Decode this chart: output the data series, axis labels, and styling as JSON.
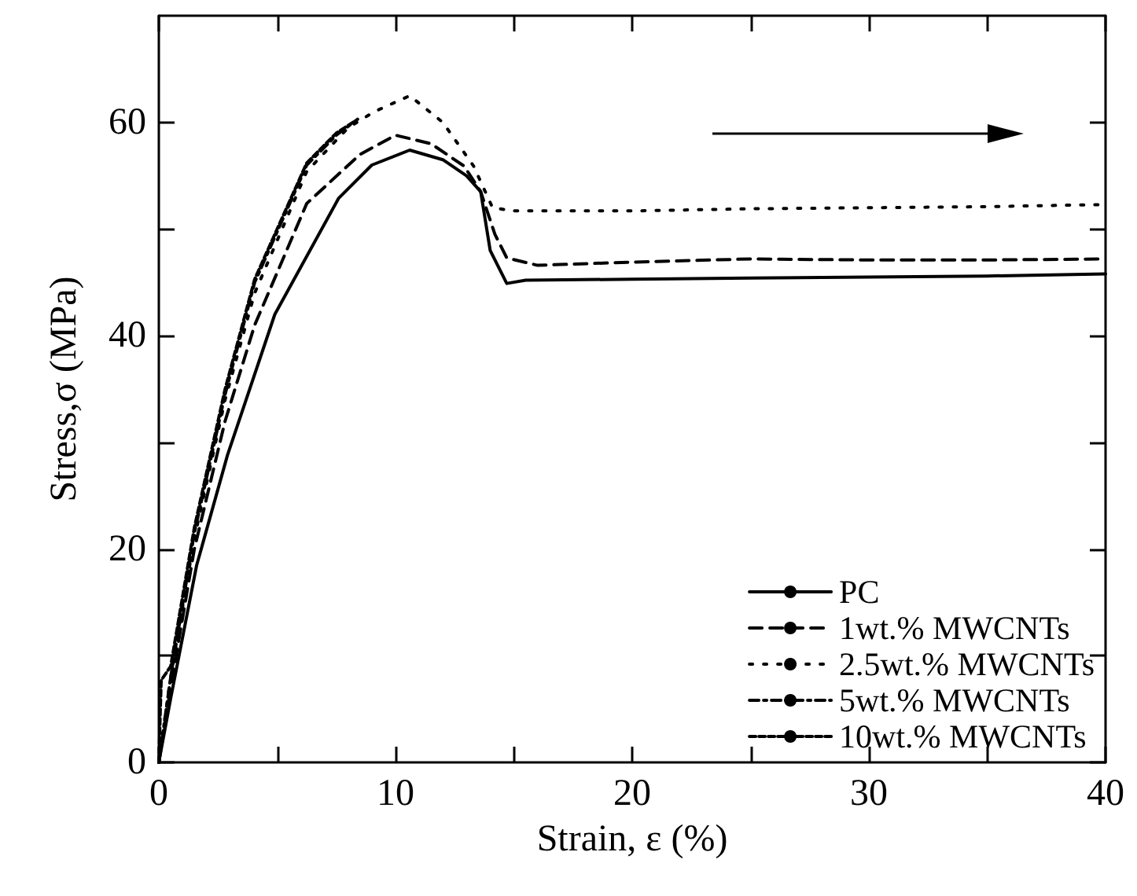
{
  "chart_data": {
    "type": "line",
    "xlabel": "Strain, ε (%)",
    "ylabel": "Stress,σ (MPa)",
    "xlim": [
      0,
      40
    ],
    "xticks": [
      0,
      {
        "value": 5,
        "label": null
      },
      10,
      {
        "value": 15,
        "label": null
      },
      20,
      {
        "value": 25,
        "label": null
      },
      30,
      {
        "value": 35,
        "label": null
      },
      40
    ],
    "ylim": [
      0,
      70
    ],
    "yticks": [
      0,
      {
        "value": 10,
        "label": null
      },
      20,
      {
        "value": 30,
        "label": null
      },
      40,
      {
        "value": 50,
        "label": null
      },
      60
    ],
    "grid": false,
    "legend": "bottom right",
    "marker": "none",
    "series": [
      {
        "name": "PC",
        "color": "#000000",
        "line_style": "solid",
        "x": [
          0,
          0.5,
          1.6,
          2.9,
          4.9,
          7.6,
          9.0,
          10.6,
          12.0,
          13.0,
          13.6,
          14.0,
          14.7,
          15.5,
          20,
          25,
          30,
          35,
          40
        ],
        "values": [
          0,
          6,
          18.5,
          28.8,
          42,
          52.9,
          56.0,
          57.4,
          56.5,
          55.0,
          53.5,
          48,
          44.9,
          45.2,
          45.3,
          45.4,
          45.5,
          45.6,
          45.8
        ]
      },
      {
        "name": "1wt.% MWCNTs",
        "color": "#000000",
        "line_style": "dashed",
        "x": [
          0,
          0.5,
          1.5,
          2.8,
          4.05,
          6.25,
          8.5,
          10.0,
          11.5,
          12.9,
          13.6,
          14.2,
          14.7,
          16,
          20,
          25,
          30,
          35,
          40
        ],
        "values": [
          0,
          7,
          20,
          32,
          41,
          52.4,
          57.0,
          58.8,
          58.0,
          55.9,
          53.5,
          49.5,
          47.3,
          46.6,
          46.9,
          47.2,
          47.1,
          47.1,
          47.2
        ]
      },
      {
        "name": "2.5wt.% MWCNTs",
        "color": "#000000",
        "line_style": "dotted",
        "x": [
          0,
          0.5,
          1.5,
          2.8,
          4.05,
          6.25,
          8.0,
          9.1,
          10.6,
          12.0,
          13.3,
          14.1,
          15,
          20,
          25,
          30,
          35,
          40
        ],
        "values": [
          0,
          8,
          21,
          34,
          44,
          55.4,
          59.5,
          61,
          62.5,
          60.0,
          55.9,
          52,
          51.7,
          51.7,
          51.9,
          52.0,
          52.1,
          52.3
        ]
      },
      {
        "name": "5wt.% MWCNTs",
        "color": "#000000",
        "line_style": "dashdot",
        "x": [
          0,
          0.5,
          1.5,
          2.8,
          4.05,
          6.25,
          7.5,
          8.4
        ],
        "values": [
          0,
          8,
          21.5,
          34.5,
          45,
          56,
          58.8,
          60.3
        ]
      },
      {
        "name": "10wt.% MWCNTs",
        "color": "#000000",
        "line_style": "densedash",
        "x": [
          0,
          0.1,
          0.5,
          1.5,
          2.8,
          4.05,
          6.25,
          7.5,
          8.2
        ],
        "values": [
          0,
          7.7,
          9,
          22,
          35,
          45.3,
          56.2,
          59,
          60.0
        ]
      }
    ]
  }
}
